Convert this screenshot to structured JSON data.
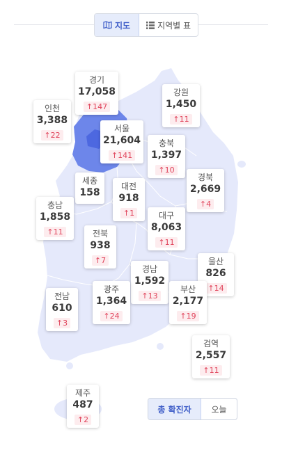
{
  "view_toggle": {
    "map_label": "지도",
    "table_label": "지역별 표"
  },
  "stat_toggle": {
    "total_label": "총 확진자",
    "today_label": "오늘"
  },
  "colors": {
    "accent": "#3f5ec8",
    "map_base": "#e5e9fb",
    "map_high": "#6d86ea",
    "map_highest": "#4d68e0",
    "increase_text": "#e0435a",
    "increase_bg": "#fdecee"
  },
  "regions": {
    "gyeonggi": {
      "name": "경기",
      "total": "17,058",
      "delta": "147"
    },
    "gangwon": {
      "name": "강원",
      "total": "1,450",
      "delta": "11"
    },
    "incheon": {
      "name": "인천",
      "total": "3,388",
      "delta": "22"
    },
    "seoul": {
      "name": "서울",
      "total": "21,604",
      "delta": "141"
    },
    "chungbuk": {
      "name": "충북",
      "total": "1,397",
      "delta": "10"
    },
    "sejong": {
      "name": "세종",
      "total": "158"
    },
    "daejeon": {
      "name": "대전",
      "total": "918",
      "delta": "1"
    },
    "gyeongbuk": {
      "name": "경북",
      "total": "2,669",
      "delta": "4"
    },
    "chungnam": {
      "name": "충남",
      "total": "1,858",
      "delta": "11"
    },
    "daegu": {
      "name": "대구",
      "total": "8,063",
      "delta": "11"
    },
    "jeonbuk": {
      "name": "전북",
      "total": "938",
      "delta": "7"
    },
    "ulsan": {
      "name": "울산",
      "total": "826",
      "delta": "14"
    },
    "gyeongnam": {
      "name": "경남",
      "total": "1,592",
      "delta": "13"
    },
    "jeonnam": {
      "name": "전남",
      "total": "610",
      "delta": "3"
    },
    "gwangju": {
      "name": "광주",
      "total": "1,364",
      "delta": "24"
    },
    "busan": {
      "name": "부산",
      "total": "2,177",
      "delta": "19"
    },
    "quarantine": {
      "name": "검역",
      "total": "2,557",
      "delta": "11"
    },
    "jeju": {
      "name": "제주",
      "total": "487",
      "delta": "2"
    }
  }
}
